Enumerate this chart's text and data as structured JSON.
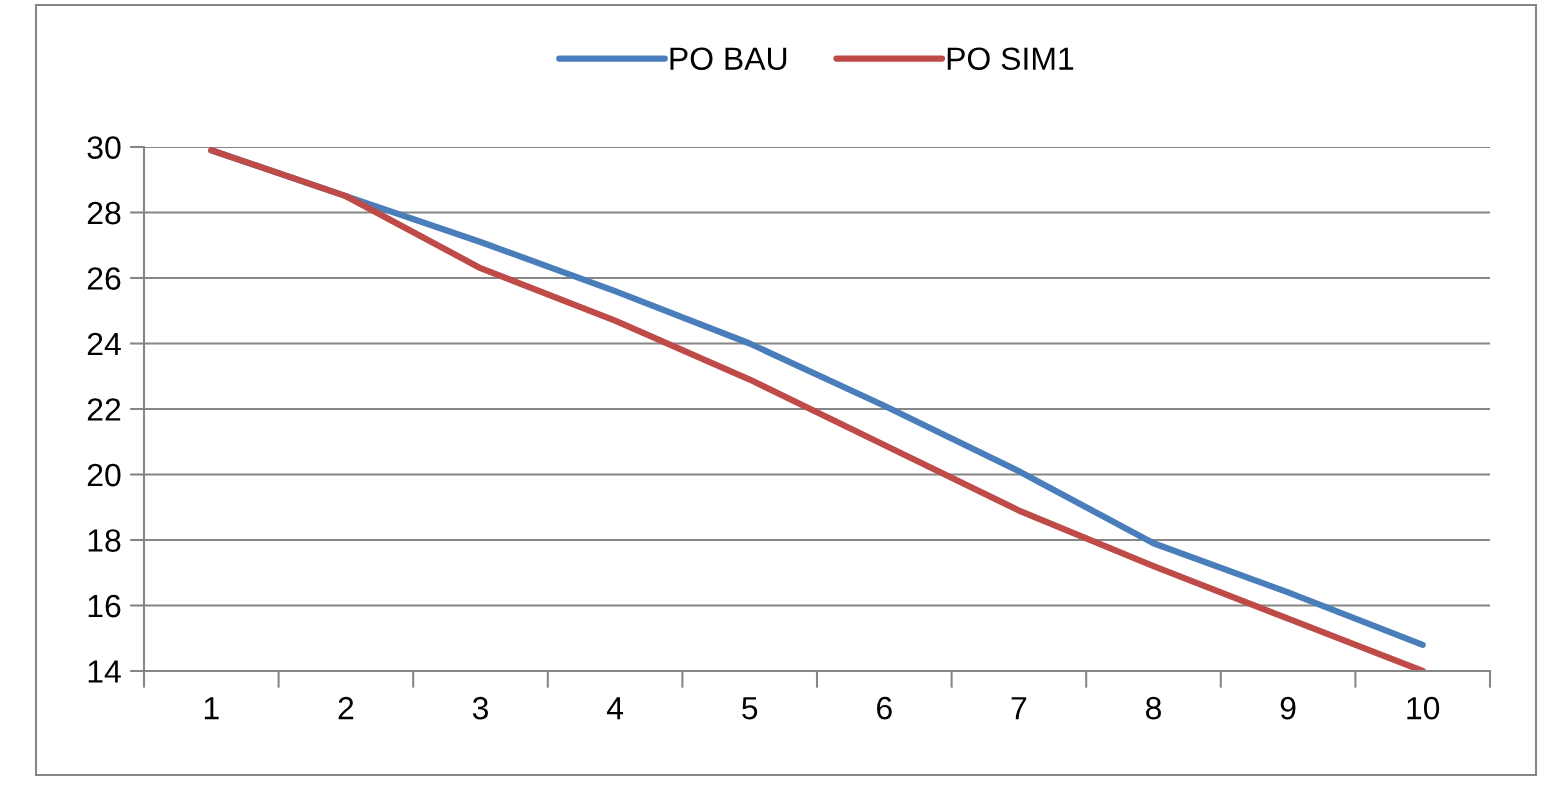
{
  "chart_data": {
    "type": "line",
    "categories": [
      "1",
      "2",
      "3",
      "4",
      "5",
      "6",
      "7",
      "8",
      "9",
      "10"
    ],
    "series": [
      {
        "name": "PO BAU",
        "color": "#4a7ebb",
        "values": [
          29.9,
          28.5,
          27.1,
          25.6,
          24.0,
          22.1,
          20.1,
          17.9,
          16.4,
          14.8
        ]
      },
      {
        "name": "PO SIM1",
        "color": "#be4b48",
        "values": [
          29.9,
          28.5,
          26.3,
          24.7,
          22.9,
          20.9,
          18.9,
          17.2,
          15.6,
          14.0
        ]
      }
    ],
    "ylim": [
      14,
      30
    ],
    "yticks": [
      14,
      16,
      18,
      20,
      22,
      24,
      26,
      28,
      30
    ],
    "grid": "y",
    "legend": "top",
    "marker": "none",
    "line_style": "solid"
  }
}
